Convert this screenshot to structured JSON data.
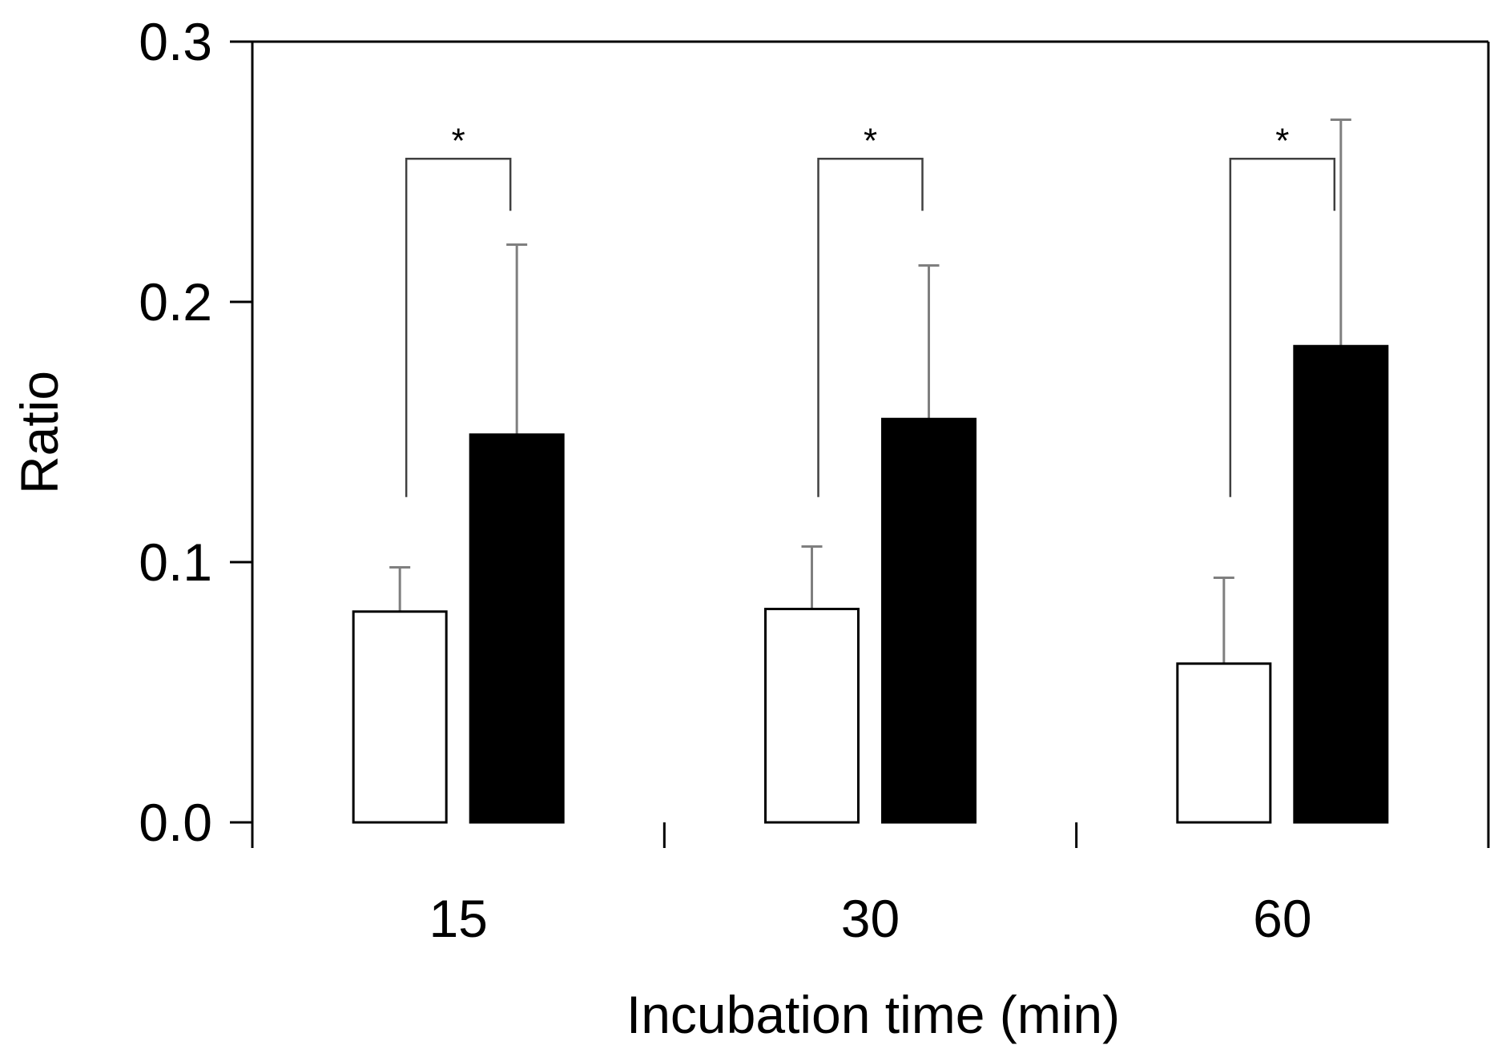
{
  "chart_data": {
    "type": "bar",
    "title": "",
    "xlabel": "Incubation time (min)",
    "ylabel": "Ratio",
    "categories": [
      "15",
      "30",
      "60"
    ],
    "ylim": [
      0,
      0.3
    ],
    "yticks": [
      0.0,
      0.1,
      0.2,
      0.3
    ],
    "ytick_labels": [
      "0.0",
      "0.1",
      "0.2",
      "0.3"
    ],
    "grid": false,
    "legend": null,
    "series": [
      {
        "name": "open",
        "fill": "#ffffff",
        "values": [
          0.081,
          0.082,
          0.061
        ],
        "error_upper": [
          0.098,
          0.106,
          0.094
        ]
      },
      {
        "name": "filled",
        "fill": "#000000",
        "values": [
          0.149,
          0.155,
          0.183
        ],
        "error_upper": [
          0.222,
          0.214,
          0.27
        ]
      }
    ],
    "significance": [
      {
        "category": "15",
        "label": "*"
      },
      {
        "category": "30",
        "label": "*"
      },
      {
        "category": "60",
        "label": "*"
      }
    ],
    "colors": {
      "axis": "#000000",
      "error_bar": "#7f7f7f",
      "bracket": "#404040"
    }
  }
}
